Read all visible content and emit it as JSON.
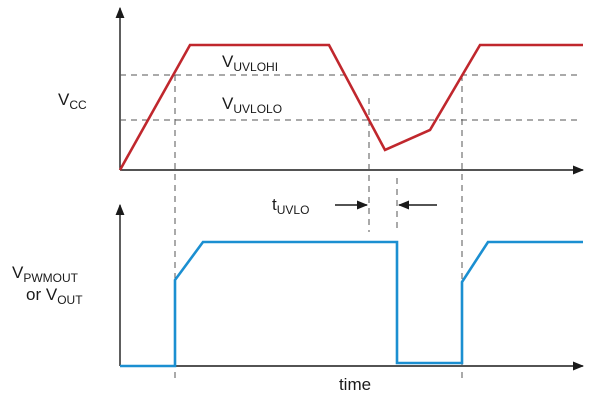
{
  "labels": {
    "vcc_main": "V",
    "vcc_sub": "CC",
    "uvlohi_main": "V",
    "uvlohi_sub": "UVLOHI",
    "uvlolo_main": "V",
    "uvlolo_sub": "UVLOLO",
    "tuvlo_main": "t",
    "tuvlo_sub": "UVLO",
    "vpwmout_main": "V",
    "vpwmout_sub": "PWMOUT",
    "or_vout_main": "or V",
    "or_vout_sub": "OUT",
    "time": "time"
  },
  "colors": {
    "vcc_trace": "#c0272d",
    "output_trace": "#1b8fd1",
    "axes": "#1a1a1a",
    "threshold_dashes": "#555555"
  }
}
